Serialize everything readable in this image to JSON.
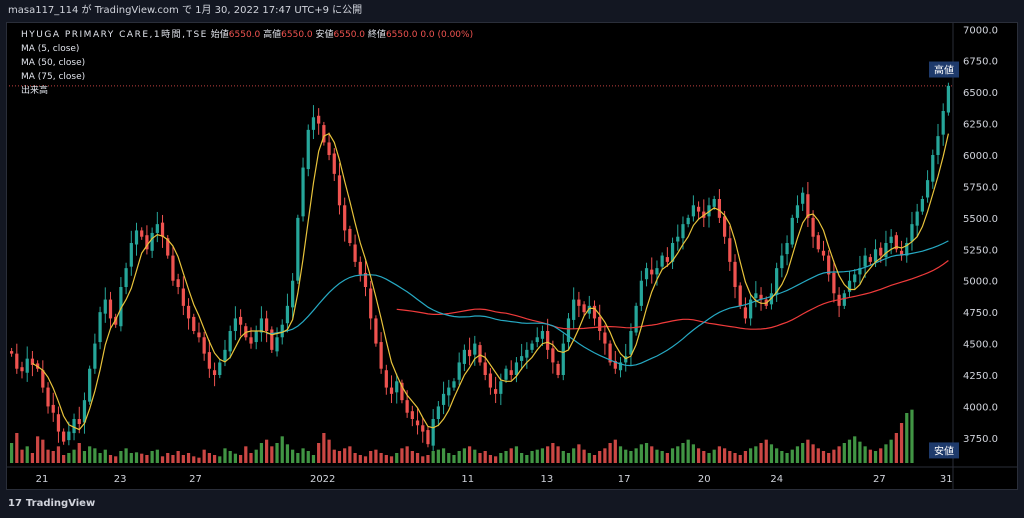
{
  "header": {
    "publish_line": "masa117_114 が TradingView.com で 1月 30, 2022 17:47 UTC+9 に公開"
  },
  "legend": {
    "symbol_line": "HYUGA PRIMARY CARE,1時間,TSE",
    "ohlc": {
      "open_label": "始値",
      "open": "6550.0",
      "high_label": "高値",
      "high": "6550.0",
      "low_label": "安値",
      "low": "6550.0",
      "close_label": "終値",
      "close": "6550.0",
      "change": "0.0 (0.00%)"
    },
    "ma5": "MA (5, close)",
    "ma50": "MA (50, close)",
    "ma75": "MA (75, close)",
    "volume": "出来高"
  },
  "tags": {
    "high": "高値",
    "low": "安値"
  },
  "footer": {
    "brand": "TradingView",
    "logo_glyph": "17"
  },
  "colors": {
    "up": "#26a69a",
    "down": "#ef5350",
    "ma5": "#e8c33b",
    "ma50": "#26a9c3",
    "ma75": "#ef3b3b",
    "vol_up": "#4caf50",
    "vol_down": "#ef5350",
    "tag_bg": "#1e3a6b"
  },
  "chart_data": {
    "type": "candlestick",
    "ylim": [
      3550,
      7050
    ],
    "yticks": [
      "7000.0",
      "6750.0",
      "6500.0",
      "6250.0",
      "6000.0",
      "5750.0",
      "5500.0",
      "5250.0",
      "5000.0",
      "4750.0",
      "4500.0",
      "4250.0",
      "4000.0",
      "3750.0"
    ],
    "xticks": [
      "21",
      "23",
      "27",
      "2022",
      "11",
      "13",
      "17",
      "20",
      "24",
      "27",
      "31"
    ],
    "high_line": 6550,
    "anchors": [
      4420,
      4300,
      4280,
      4380,
      4330,
      4300,
      4150,
      4000,
      3950,
      3800,
      3720,
      3800,
      3900,
      3860,
      4050,
      4300,
      4500,
      4750,
      4850,
      4700,
      4650,
      4950,
      5100,
      5300,
      5400,
      5350,
      5250,
      5380,
      5450,
      5350,
      5200,
      5000,
      4950,
      4800,
      4700,
      4600,
      4550,
      4420,
      4300,
      4250,
      4350,
      4450,
      4600,
      4700,
      4650,
      4550,
      4500,
      4600,
      4700,
      4600,
      4450,
      4550,
      4650,
      4800,
      5000,
      5500,
      5900,
      6200,
      6300,
      6250,
      6100,
      6000,
      5850,
      5600,
      5400,
      5300,
      5150,
      5050,
      4950,
      4700,
      4500,
      4300,
      4150,
      4100,
      4200,
      4050,
      3950,
      3900,
      3850,
      3800,
      3700,
      3900,
      4000,
      4100,
      4150,
      4200,
      4350,
      4450,
      4400,
      4500,
      4350,
      4250,
      4150,
      4100,
      4200,
      4300,
      4250,
      4350,
      4400,
      4450,
      4500,
      4550,
      4600,
      4450,
      4350,
      4250,
      4500,
      4700,
      4850,
      4800,
      4750,
      4800,
      4700,
      4600,
      4500,
      4350,
      4300,
      4350,
      4400,
      4600,
      4800,
      5000,
      5100,
      5050,
      5100,
      5200,
      5150,
      5300,
      5350,
      5450,
      5500,
      5600,
      5550,
      5500,
      5600,
      5650,
      5500,
      5350,
      5150,
      4950,
      4800,
      4700,
      4850,
      4900,
      4850,
      4800,
      4900,
      5100,
      5200,
      5300,
      5500,
      5600,
      5700,
      5500,
      5350,
      5250,
      5200,
      5050,
      4900,
      4800,
      4900,
      5000,
      5050,
      5100,
      5200,
      5150,
      5250,
      5200,
      5300,
      5350,
      5250,
      5200,
      5300,
      5450,
      5550,
      5650,
      5800,
      6000,
      6150,
      6350,
      6550
    ],
    "volumes": [
      30,
      45,
      20,
      25,
      15,
      40,
      35,
      20,
      18,
      25,
      12,
      15,
      20,
      30,
      18,
      25,
      22,
      15,
      20,
      12,
      10,
      18,
      22,
      15,
      16,
      14,
      12,
      18,
      20,
      10,
      15,
      12,
      18,
      12,
      15,
      10,
      8,
      20,
      15,
      12,
      10,
      22,
      18,
      14,
      12,
      25,
      15,
      20,
      30,
      35,
      25,
      30,
      40,
      28,
      20,
      15,
      22,
      18,
      12,
      30,
      45,
      35,
      20,
      18,
      22,
      25,
      15,
      12,
      10,
      18,
      20,
      15,
      12,
      10,
      15,
      22,
      25,
      18,
      15,
      10,
      12,
      18,
      20,
      22,
      15,
      12,
      18,
      22,
      25,
      20,
      15,
      18,
      12,
      10,
      15,
      18,
      22,
      25,
      15,
      12,
      18,
      20,
      22,
      25,
      30,
      25,
      18,
      15,
      22,
      28,
      20,
      15,
      12,
      18,
      22,
      30,
      35,
      25,
      20,
      18,
      22,
      28,
      30,
      25,
      20,
      18,
      15,
      22,
      25,
      30,
      35,
      28,
      22,
      18,
      15,
      20,
      25,
      22,
      18,
      15,
      12,
      18,
      22,
      25,
      30,
      35,
      28,
      22,
      18,
      15,
      20,
      25,
      30,
      35,
      28,
      22,
      18,
      15,
      20,
      25,
      30,
      35,
      40,
      32,
      25,
      20,
      18,
      22,
      28,
      35,
      45,
      60,
      75,
      80
    ]
  }
}
